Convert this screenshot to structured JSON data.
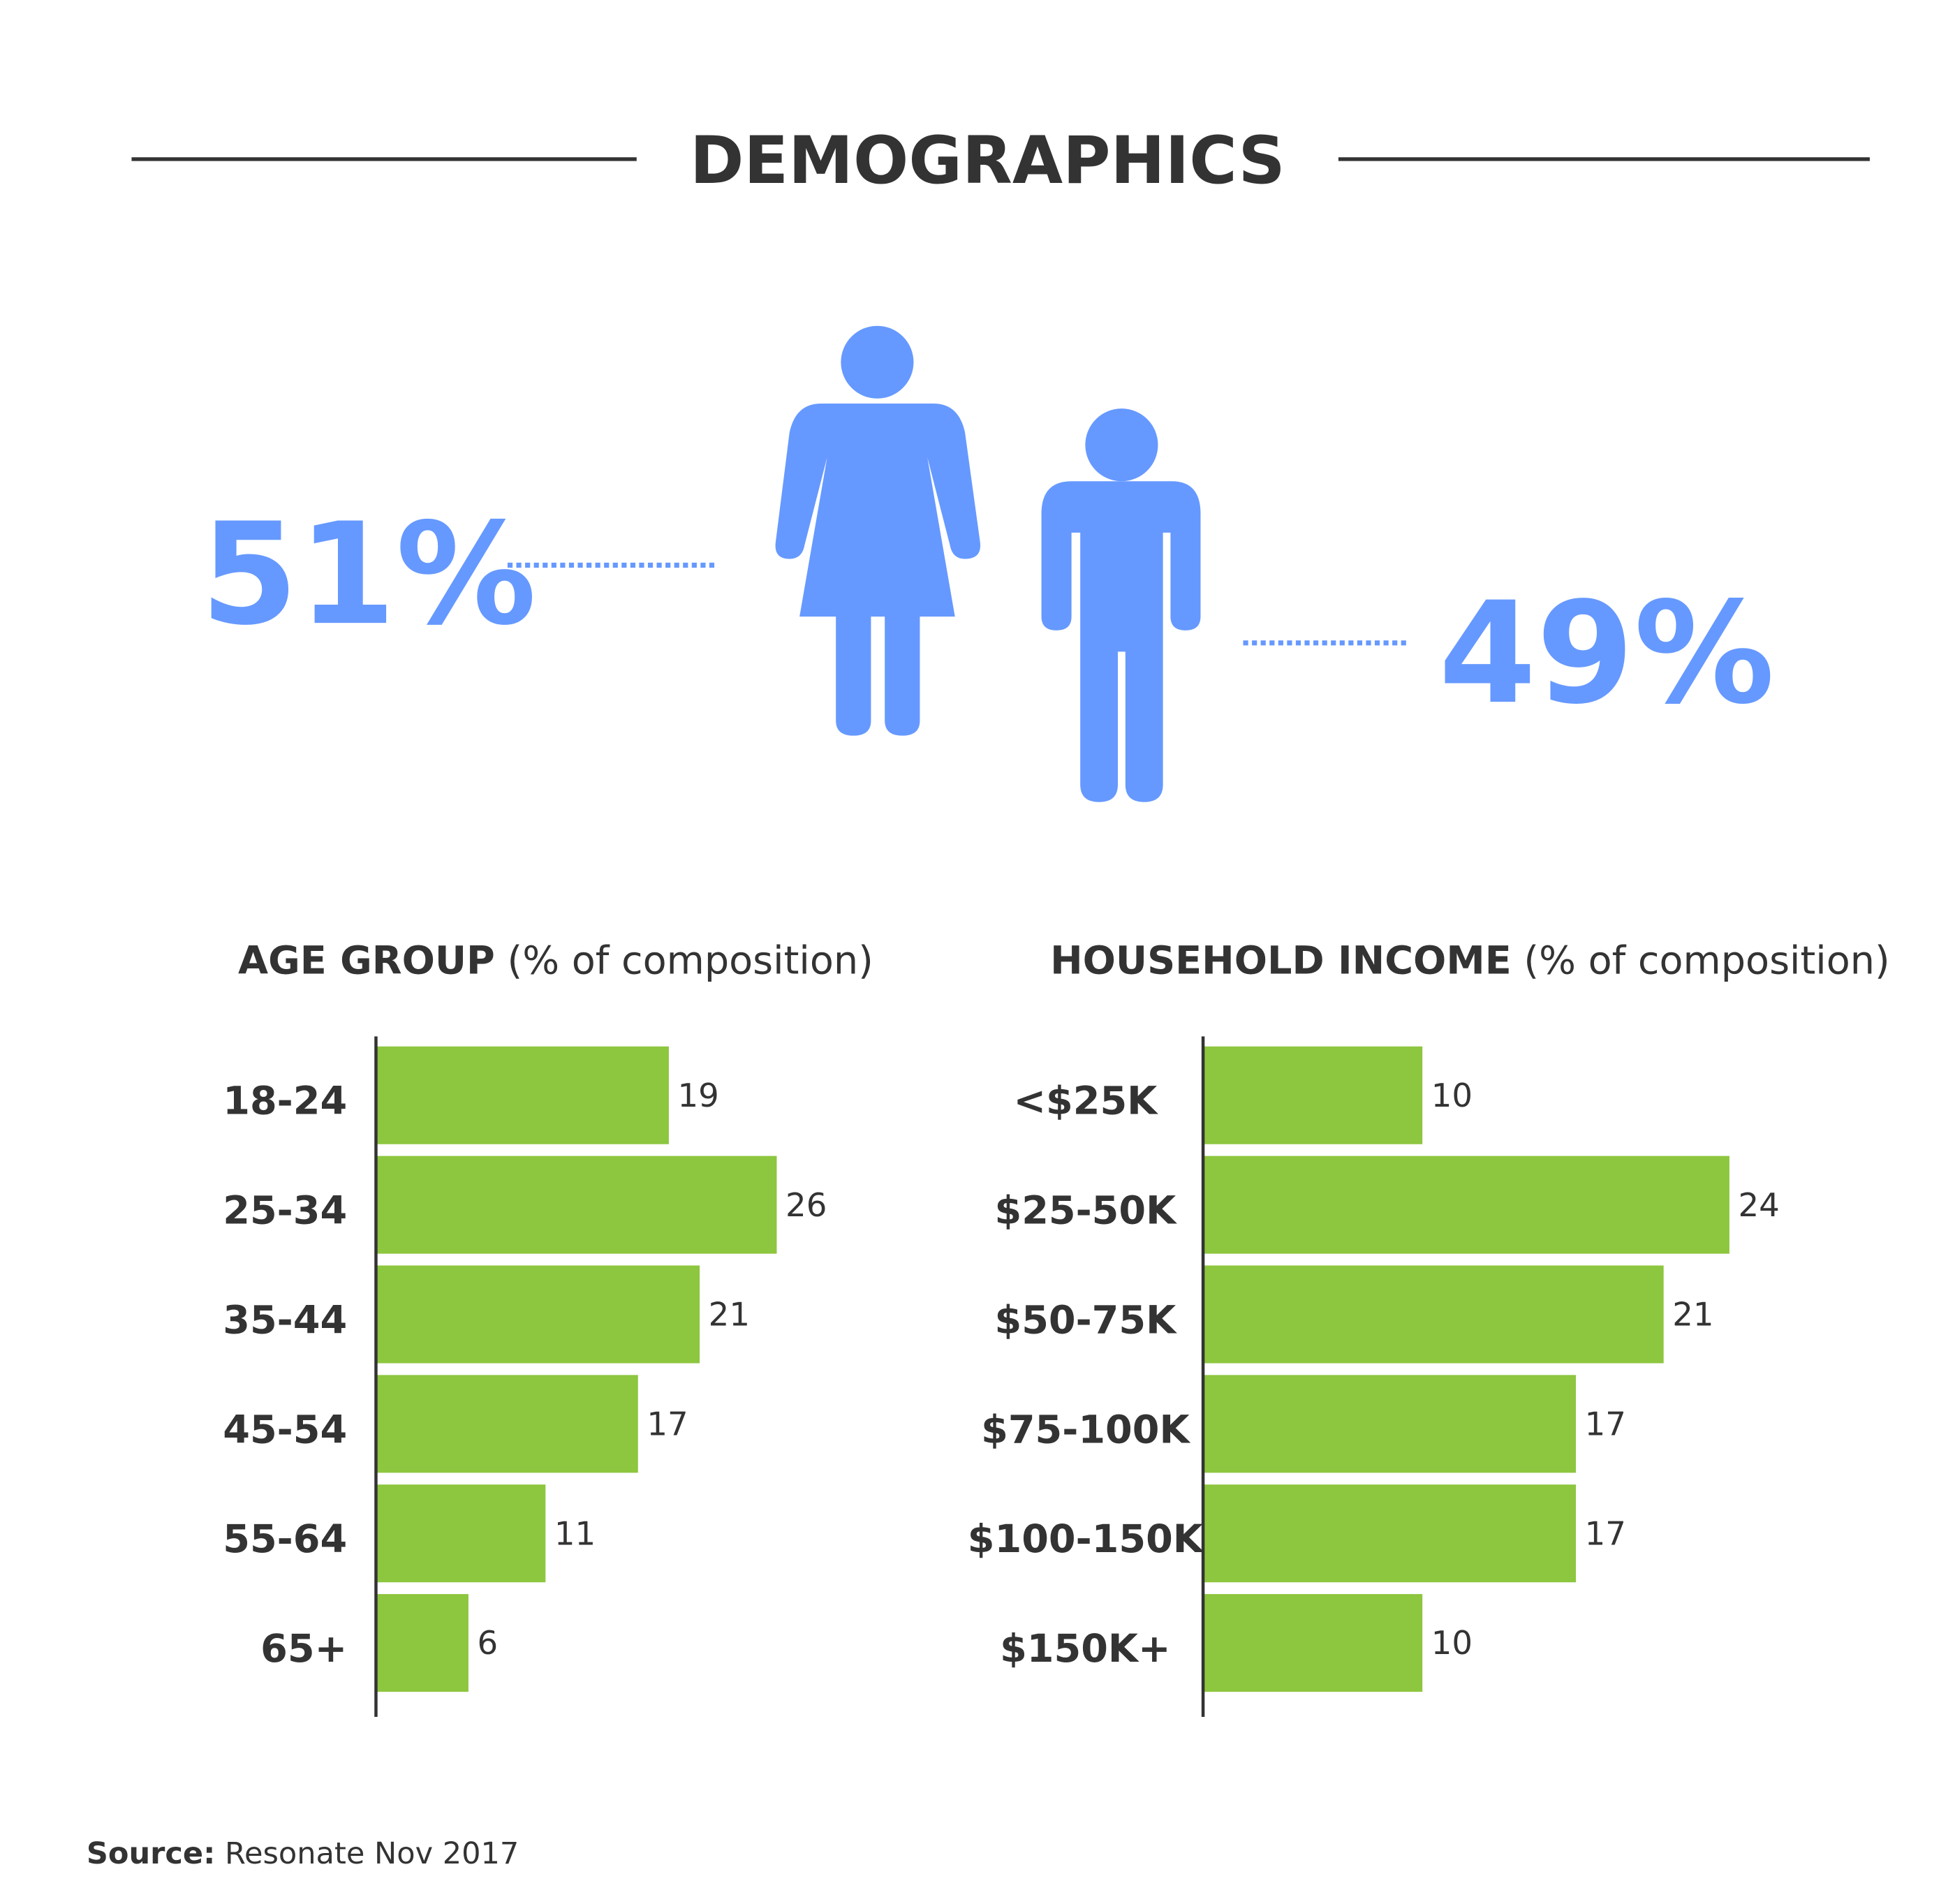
{
  "title": "DEMOGRAPHICS",
  "chart_data": [
    {
      "type": "pictogram",
      "values": [
        51,
        49
      ],
      "value_labels": [
        "51%",
        "49%"
      ],
      "color": "#6699ff"
    },
    {
      "type": "bar",
      "title": "AGE GROUP",
      "subtitle": "(% of composition)",
      "categories": [
        "18-24",
        "25-34",
        "35-44",
        "45-54",
        "55-64",
        "65+"
      ],
      "values": [
        19,
        26,
        21,
        17,
        11,
        6
      ],
      "xlim": [
        0,
        30
      ],
      "color": "#8dc63f"
    },
    {
      "type": "bar",
      "title": "HOUSEHOLD INCOME",
      "subtitle": "(% of composition)",
      "categories": [
        "<$25K",
        "$25-50K",
        "$50-75K",
        "$75-100K",
        "$100-150K",
        "$150K+"
      ],
      "values": [
        10,
        24,
        21,
        17,
        17,
        10
      ],
      "xlim": [
        0,
        30
      ],
      "color": "#8dc63f"
    }
  ],
  "source_label": "Source:",
  "source": "Resonate Nov 2017"
}
